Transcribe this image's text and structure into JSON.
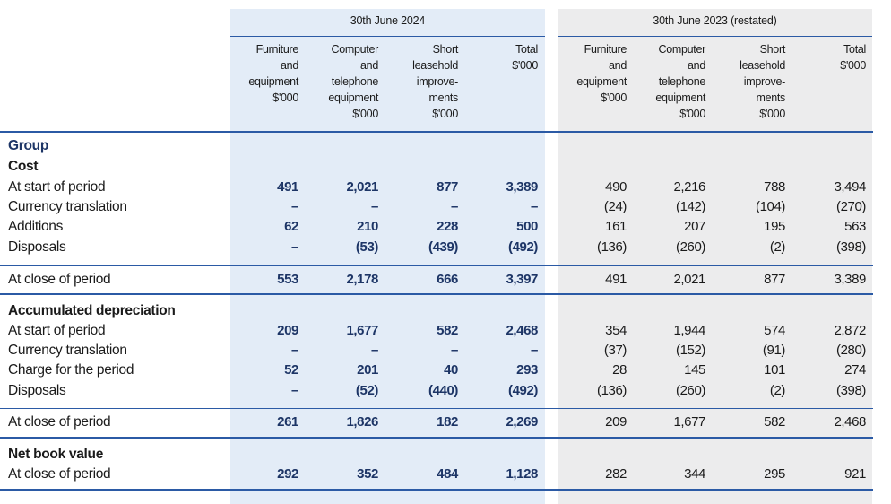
{
  "periods": {
    "current": "30th June 2024",
    "prior": "30th June 2023 (restated)"
  },
  "column_headers": {
    "current": [
      "Furniture\nand\nequipment\n$'000",
      "Computer\nand\ntelephone\nequipment\n$'000",
      "Short\nleasehold\nimprove-\nments\n$'000",
      "Total\n$'000"
    ],
    "prior": [
      "Furniture\nand\nequipment\n$'000",
      "Computer\nand\ntelephone\nequipment\n$'000",
      "Short\nleasehold\nimprove-\nments\n$'000",
      "Total\n$'000"
    ]
  },
  "sections": {
    "group": "Group",
    "cost": "Cost",
    "accumulated_depreciation": "Accumulated depreciation",
    "net_book_value": "Net book value"
  },
  "rows": [
    {
      "label": "At start of period",
      "current": [
        "491",
        "2,021",
        "877",
        "3,389"
      ],
      "prior": [
        "490",
        "2,216",
        "788",
        "3,494"
      ]
    },
    {
      "label": "Currency translation",
      "current": [
        "–",
        "–",
        "–",
        "–"
      ],
      "prior": [
        "(24)",
        "(142)",
        "(104)",
        "(270)"
      ]
    },
    {
      "label": "Additions",
      "current": [
        "62",
        "210",
        "228",
        "500"
      ],
      "prior": [
        "161",
        "207",
        "195",
        "563"
      ]
    },
    {
      "label": "Disposals",
      "current": [
        "–",
        "(53)",
        "(439)",
        "(492)"
      ],
      "prior": [
        "(136)",
        "(260)",
        "(2)",
        "(398)"
      ]
    },
    {
      "label": "At close of period",
      "current": [
        "553",
        "2,178",
        "666",
        "3,397"
      ],
      "prior": [
        "491",
        "2,021",
        "877",
        "3,389"
      ]
    },
    {
      "label": "At start of period",
      "current": [
        "209",
        "1,677",
        "582",
        "2,468"
      ],
      "prior": [
        "354",
        "1,944",
        "574",
        "2,872"
      ]
    },
    {
      "label": "Currency translation",
      "current": [
        "–",
        "–",
        "–",
        "–"
      ],
      "prior": [
        "(37)",
        "(152)",
        "(91)",
        "(280)"
      ]
    },
    {
      "label": "Charge for the period",
      "current": [
        "52",
        "201",
        "40",
        "293"
      ],
      "prior": [
        "28",
        "145",
        "101",
        "274"
      ]
    },
    {
      "label": "Disposals",
      "current": [
        "–",
        "(52)",
        "(440)",
        "(492)"
      ],
      "prior": [
        "(136)",
        "(260)",
        "(2)",
        "(398)"
      ]
    },
    {
      "label": "At close of period",
      "current": [
        "261",
        "1,826",
        "182",
        "2,269"
      ],
      "prior": [
        "209",
        "1,677",
        "582",
        "2,468"
      ]
    },
    {
      "label": "At close of period",
      "current": [
        "292",
        "352",
        "484",
        "1,128"
      ],
      "prior": [
        "282",
        "344",
        "295",
        "921"
      ]
    }
  ]
}
